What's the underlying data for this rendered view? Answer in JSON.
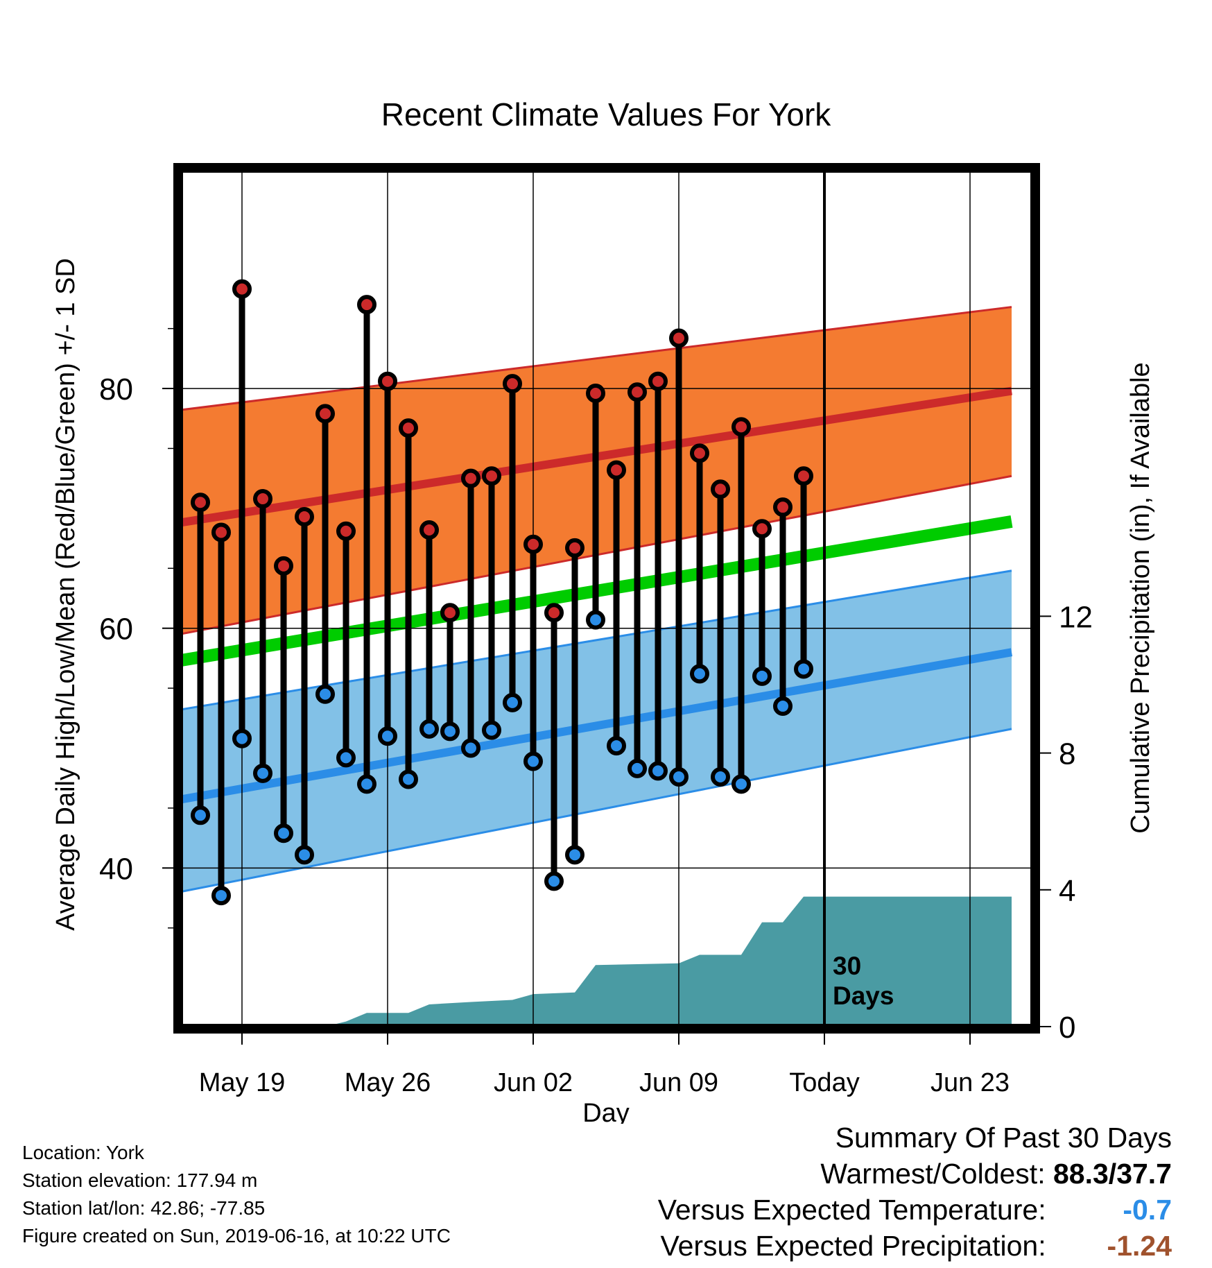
{
  "chart_data": {
    "type": "line",
    "title": "Recent Climate Values For York",
    "xlabel": "Day",
    "ylabel": "Average Daily High/Low/Mean (Red/Blue/Green) +/- 1 SD",
    "y2label": "Cumulative Precipitation (in), If Available",
    "ylim": [
      27,
      98
    ],
    "y2lim": [
      0,
      24
    ],
    "yticks": [
      40,
      60,
      80
    ],
    "y2ticks": [
      0,
      4,
      8,
      12
    ],
    "x_tick_labels": [
      "May 19",
      "May 26",
      "Jun 02",
      "Jun 09",
      "Today",
      "Jun 23"
    ],
    "today_annotation": [
      "30",
      "Days"
    ],
    "grid": true,
    "daily_dates": [
      "2019-05-17",
      "2019-05-18",
      "2019-05-19",
      "2019-05-20",
      "2019-05-21",
      "2019-05-22",
      "2019-05-23",
      "2019-05-24",
      "2019-05-25",
      "2019-05-26",
      "2019-05-27",
      "2019-05-28",
      "2019-05-29",
      "2019-05-30",
      "2019-05-31",
      "2019-06-01",
      "2019-06-02",
      "2019-06-03",
      "2019-06-04",
      "2019-06-05",
      "2019-06-06",
      "2019-06-07",
      "2019-06-08",
      "2019-06-09",
      "2019-06-10",
      "2019-06-11",
      "2019-06-12",
      "2019-06-13",
      "2019-06-14",
      "2019-06-15"
    ],
    "daily_high": [
      70.5,
      68.0,
      88.3,
      70.8,
      65.2,
      69.3,
      77.9,
      68.1,
      87.0,
      80.6,
      76.7,
      68.2,
      61.3,
      72.5,
      72.7,
      80.4,
      67.0,
      61.3,
      66.7,
      79.6,
      73.2,
      79.7,
      80.6,
      84.2,
      74.6,
      71.6,
      76.8,
      68.3,
      70.1,
      72.7
    ],
    "daily_low": [
      44.4,
      37.7,
      50.8,
      47.9,
      42.9,
      41.1,
      54.5,
      49.2,
      47.0,
      51.0,
      47.4,
      51.6,
      51.4,
      50.0,
      51.5,
      53.8,
      48.9,
      38.9,
      41.1,
      60.7,
      50.2,
      48.3,
      48.1,
      47.6,
      56.2,
      47.6,
      47.0,
      56.0,
      53.5,
      56.6
    ],
    "normal_high": {
      "dates": [
        "2019-05-16",
        "2019-06-25"
      ],
      "values": [
        68.8,
        79.8
      ]
    },
    "normal_high_sd": {
      "lower": [
        59.5,
        72.7
      ],
      "upper": [
        78.2,
        86.8
      ]
    },
    "normal_low": {
      "dates": [
        "2019-05-16",
        "2019-06-25"
      ],
      "values": [
        45.7,
        58.0
      ]
    },
    "normal_low_sd": {
      "lower": [
        38.0,
        51.6
      ],
      "upper": [
        53.2,
        64.8
      ]
    },
    "normal_mean": {
      "dates": [
        "2019-05-16",
        "2019-06-25"
      ],
      "values": [
        57.3,
        68.9
      ]
    },
    "cumulative_precip": {
      "dates": [
        "2019-05-16",
        "2019-05-23",
        "2019-05-24",
        "2019-05-25",
        "2019-05-26",
        "2019-05-27",
        "2019-05-28",
        "2019-05-30",
        "2019-06-01",
        "2019-06-02",
        "2019-06-04",
        "2019-06-05",
        "2019-06-09",
        "2019-06-10",
        "2019-06-12",
        "2019-06-13",
        "2019-06-14",
        "2019-06-15",
        "2019-06-16",
        "2019-06-25"
      ],
      "values": [
        0,
        0,
        0.15,
        0.4,
        0.4,
        0.4,
        0.65,
        0.72,
        0.78,
        0.95,
        1.0,
        1.8,
        1.85,
        2.1,
        2.1,
        3.05,
        3.05,
        3.8,
        3.8,
        3.8
      ]
    },
    "colors": {
      "high_band": "#f47b31",
      "high_line": "#cc2a2a",
      "low_band": "#82c1e7",
      "low_line": "#2b8de7",
      "mean_line": "#00cc00",
      "precip": "#4a9ba3",
      "high_marker": "#cc2a2a",
      "low_marker": "#2b8de7"
    }
  },
  "footer": {
    "location": "Location: York",
    "elevation": "Station elevation: 177.94 m",
    "latlon": "Station lat/lon: 42.86; -77.85",
    "created": "Figure created on Sun, 2019-06-16, at 10:22 UTC"
  },
  "summary": {
    "title": "Summary Of Past 30 Days",
    "warmest_label": "Warmest/Coldest:",
    "warmest_value": "88.3/37.7",
    "temp_label": "Versus Expected Temperature:",
    "temp_value": "-0.7",
    "temp_color": "#2b8de7",
    "precip_label": "Versus Expected Precipitation:",
    "precip_value": "-1.24",
    "precip_color": "#a0522d"
  }
}
